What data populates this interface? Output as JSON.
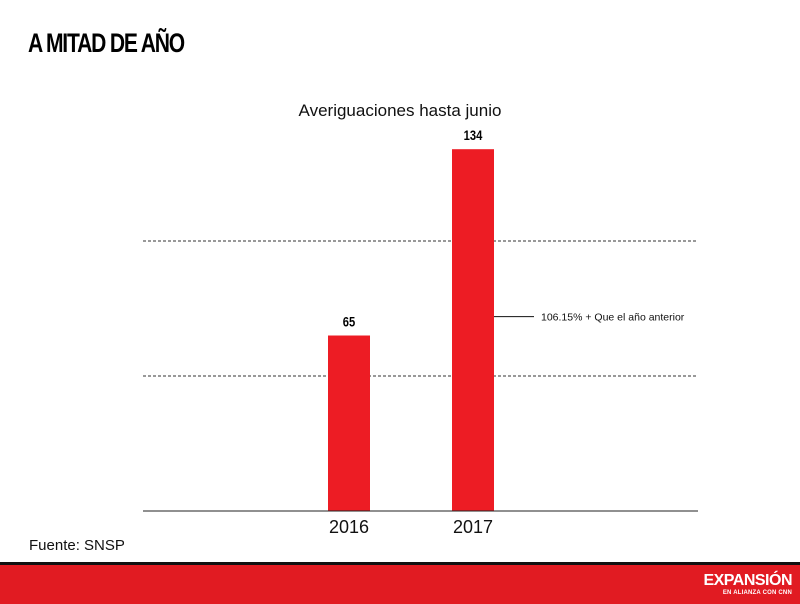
{
  "headline": "A MITAD DE AÑO",
  "source": "Fuente: SNSP",
  "logo": {
    "word": "EXPANSIÓN",
    "sub": "EN ALIANZA CON CNN"
  },
  "colors": {
    "bar": "#ed1c24",
    "band": "#e11b22",
    "text": "#111111"
  },
  "chart_data": {
    "type": "bar",
    "title": "Averiguaciones hasta junio",
    "categories": [
      "2016",
      "2017"
    ],
    "values": [
      65,
      134
    ],
    "value_labels": [
      "65",
      "134"
    ],
    "ylim": [
      0,
      150
    ],
    "gridlines": [
      50,
      100
    ],
    "annotation": {
      "text": "106.15% + Que el año anterior",
      "at_value": 72
    },
    "xlabel": "",
    "ylabel": ""
  }
}
